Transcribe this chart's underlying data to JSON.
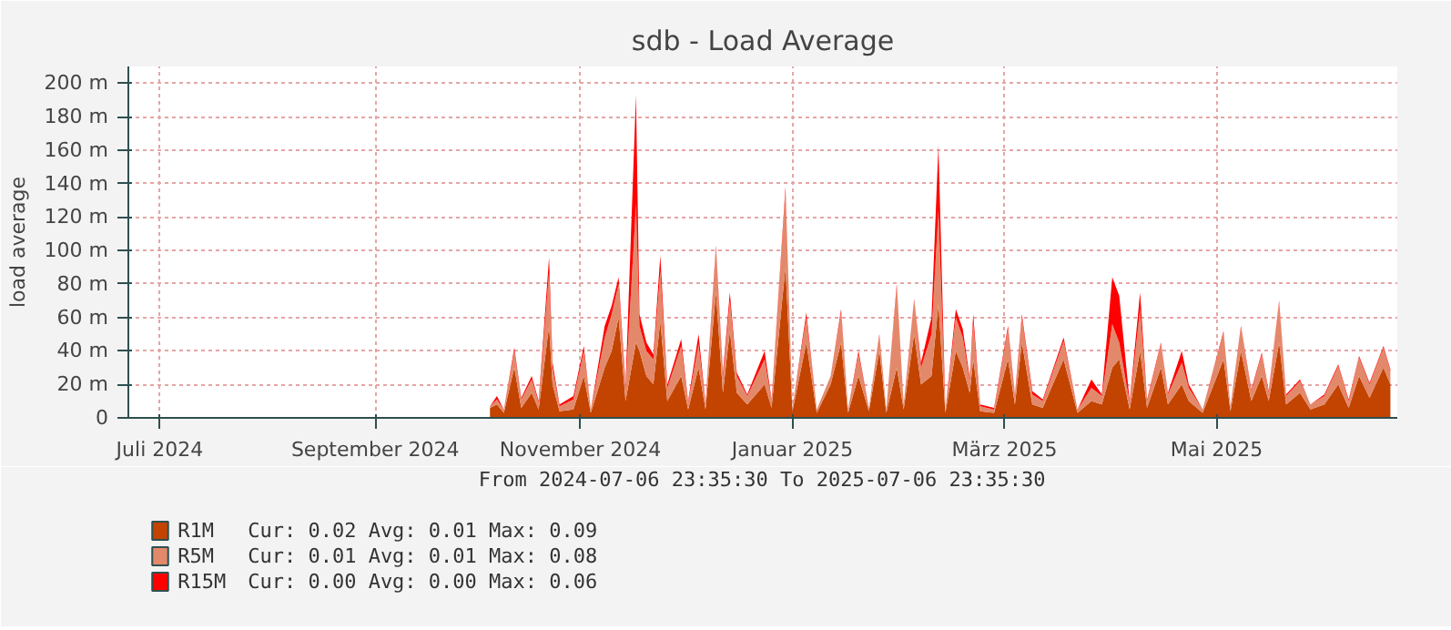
{
  "chart_data": {
    "type": "area",
    "stacked": true,
    "title": "sdb - Load Average",
    "ylabel": "load average",
    "x": [
      "2024-10-19",
      "2024-10-21",
      "2024-10-23",
      "2024-10-26",
      "2024-10-28",
      "2024-10-31",
      "2024-11-02",
      "2024-11-05",
      "2024-11-06",
      "2024-11-08",
      "2024-11-12",
      "2024-11-15",
      "2024-11-17",
      "2024-11-21",
      "2024-11-23",
      "2024-11-25",
      "2024-11-27",
      "2024-11-30",
      "2024-12-01",
      "2024-12-03",
      "2024-12-05",
      "2024-12-07",
      "2024-12-09",
      "2024-12-13",
      "2024-12-15",
      "2024-12-18",
      "2024-12-20",
      "2024-12-23",
      "2024-12-25",
      "2024-12-27",
      "2024-12-29",
      "2025-01-01",
      "2025-01-06",
      "2025-01-08",
      "2025-01-12",
      "2025-01-14",
      "2025-01-18",
      "2025-01-21",
      "2025-01-25",
      "2025-01-28",
      "2025-01-30",
      "2025-02-02",
      "2025-02-05",
      "2025-02-08",
      "2025-02-10",
      "2025-02-13",
      "2025-02-15",
      "2025-02-18",
      "2025-02-20",
      "2025-02-23",
      "2025-02-25",
      "2025-02-27",
      "2025-03-02",
      "2025-03-04",
      "2025-03-06",
      "2025-03-07",
      "2025-03-09",
      "2025-03-13",
      "2025-03-17",
      "2025-03-19",
      "2025-03-21",
      "2025-03-24",
      "2025-03-27",
      "2025-04-02",
      "2025-04-06",
      "2025-04-10",
      "2025-04-13",
      "2025-04-16",
      "2025-04-18",
      "2025-04-21",
      "2025-04-24",
      "2025-04-26",
      "2025-04-30",
      "2025-05-02",
      "2025-05-06",
      "2025-05-08",
      "2025-05-12",
      "2025-05-18",
      "2025-05-20",
      "2025-05-23",
      "2025-05-26",
      "2025-05-29",
      "2025-05-31",
      "2025-06-03",
      "2025-06-05",
      "2025-06-09",
      "2025-06-12",
      "2025-06-16",
      "2025-06-20",
      "2025-06-23",
      "2025-06-26",
      "2025-06-29",
      "2025-07-03",
      "2025-07-05"
    ],
    "series": [
      {
        "name": "R1M",
        "color": "#c24400",
        "values": [
          6,
          8,
          3,
          30,
          6,
          15,
          5,
          55,
          20,
          4,
          5,
          25,
          3,
          30,
          40,
          60,
          10,
          45,
          40,
          25,
          20,
          58,
          10,
          25,
          5,
          30,
          5,
          75,
          15,
          52,
          15,
          8,
          20,
          6,
          90,
          4,
          45,
          3,
          20,
          45,
          3,
          25,
          4,
          40,
          3,
          30,
          5,
          50,
          20,
          25,
          68,
          3,
          40,
          30,
          15,
          35,
          4,
          3,
          35,
          8,
          45,
          8,
          6,
          35,
          3,
          10,
          8,
          30,
          35,
          5,
          40,
          6,
          30,
          8,
          20,
          10,
          3,
          35,
          4,
          40,
          10,
          25,
          10,
          45,
          8,
          15,
          5,
          8,
          20,
          6,
          25,
          12,
          30,
          20
        ]
      },
      {
        "name": "R5M",
        "color": "#e3896b",
        "values": [
          1,
          3,
          2,
          10,
          5,
          8,
          4,
          32,
          10,
          3,
          6,
          15,
          2,
          18,
          22,
          20,
          8,
          83,
          15,
          15,
          15,
          30,
          8,
          18,
          4,
          14,
          3,
          26,
          10,
          18,
          10,
          5,
          15,
          4,
          45,
          2,
          15,
          2,
          5,
          18,
          2,
          13,
          2,
          9,
          2,
          48,
          3,
          20,
          10,
          25,
          56,
          2,
          20,
          18,
          7,
          22,
          3,
          2,
          18,
          5,
          15,
          6,
          4,
          11,
          2,
          8,
          5,
          26,
          10,
          4,
          25,
          4,
          14,
          6,
          13,
          8,
          2,
          16,
          3,
          14,
          6,
          13,
          5,
          24,
          5,
          7,
          3,
          5,
          11,
          4,
          11,
          8,
          12,
          8
        ]
      },
      {
        "name": "R15M",
        "color": "#ff0000",
        "values": [
          0,
          2,
          0,
          2,
          1,
          2,
          1,
          9,
          3,
          1,
          2,
          3,
          0,
          7,
          5,
          4,
          2,
          65,
          7,
          5,
          3,
          9,
          2,
          4,
          1,
          6,
          1,
          2,
          2,
          5,
          2,
          1,
          5,
          1,
          3,
          0,
          3,
          0,
          0,
          2,
          0,
          2,
          0,
          1,
          0,
          2,
          0,
          1,
          3,
          10,
          39,
          0,
          5,
          5,
          2,
          5,
          1,
          1,
          2,
          1,
          2,
          2,
          1,
          2,
          0,
          5,
          1,
          28,
          28,
          1,
          10,
          1,
          1,
          1,
          7,
          2,
          0,
          1,
          0,
          1,
          1,
          1,
          1,
          1,
          1,
          1,
          0,
          1,
          1,
          1,
          1,
          1,
          1,
          1
        ]
      }
    ],
    "xlim": [
      "2024-07-06T23:35",
      "2025-07-06T23:35"
    ],
    "xticks": [
      {
        "value": "2024-07-16",
        "label": "Juli 2024"
      },
      {
        "value": "2024-09-16",
        "label": "September 2024"
      },
      {
        "value": "2024-11-14",
        "label": "November 2024"
      },
      {
        "value": "2025-01-14",
        "label": "Januar 2025"
      },
      {
        "value": "2025-03-16",
        "label": "März 2025"
      },
      {
        "value": "2025-05-16",
        "label": "Mai 2025"
      }
    ],
    "ylim": [
      0,
      210
    ],
    "yticks": [
      0,
      {
        "value": 20,
        "label": "20 m"
      },
      {
        "value": 40,
        "label": "40 m"
      },
      {
        "value": 60,
        "label": "60 m"
      },
      {
        "value": 80,
        "label": "80 m"
      },
      {
        "value": 100,
        "label": "100 m"
      },
      {
        "value": 120,
        "label": "120 m"
      },
      {
        "value": 140,
        "label": "140 m"
      },
      {
        "value": 160,
        "label": "160 m"
      },
      {
        "value": 180,
        "label": "180 m"
      },
      {
        "value": 200,
        "label": "200 m"
      }
    ],
    "grid": true,
    "legend": "bottom left",
    "annotations": [
      "From 2024-07-06 23:35:30 To 2025-07-06 23:35:30",
      "Cur: 0.02 Avg: 0.01 Max: 0.09",
      "Cur: 0.01 Avg: 0.01 Max: 0.08",
      "Cur: 0.00 Avg: 0.00 Max: 0.06"
    ]
  }
}
